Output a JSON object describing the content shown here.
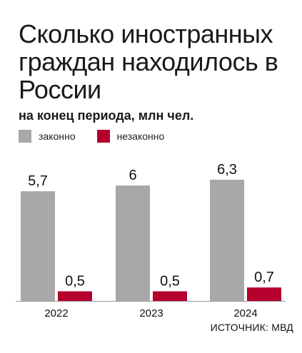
{
  "title": "Сколько иностранных граждан находилось в России",
  "subtitle": "на конец периода, млн чел.",
  "source": "ИСТОЧНИК: МВД",
  "colors": {
    "legal": "#a8a8aa",
    "illegal": "#b5002e"
  },
  "chart_data": {
    "type": "bar",
    "categories": [
      "2022",
      "2023",
      "2024"
    ],
    "series": [
      {
        "name": "законно",
        "values": [
          5.7,
          6,
          6.3
        ],
        "labels": [
          "5,7",
          "6",
          "6,3"
        ]
      },
      {
        "name": "незаконно",
        "values": [
          0.5,
          0.5,
          0.7
        ],
        "labels": [
          "0,5",
          "0,5",
          "0,7"
        ]
      }
    ],
    "title": "Сколько иностранных граждан находилось в России",
    "subtitle": "на конец периода, млн чел.",
    "legend_position": "top-left",
    "grid": false,
    "ylim": [
      0,
      6.3
    ]
  }
}
